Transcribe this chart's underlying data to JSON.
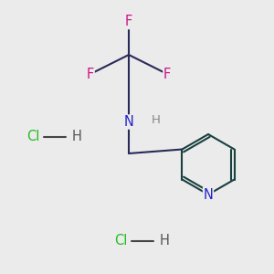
{
  "background_color": "#ebebeb",
  "bond_color": "#2a2a5a",
  "F_color": "#cc1188",
  "N_color": "#2222cc",
  "Cl_color": "#22bb22",
  "H_color": "#888888",
  "py_color": "#1a4040",
  "bond_lw": 1.5,
  "font_size": 10.5,
  "figsize": [
    3.0,
    3.0
  ],
  "dpi": 100,
  "HCl1": [
    0.12,
    0.5
  ],
  "HCl2": [
    0.44,
    0.12
  ]
}
